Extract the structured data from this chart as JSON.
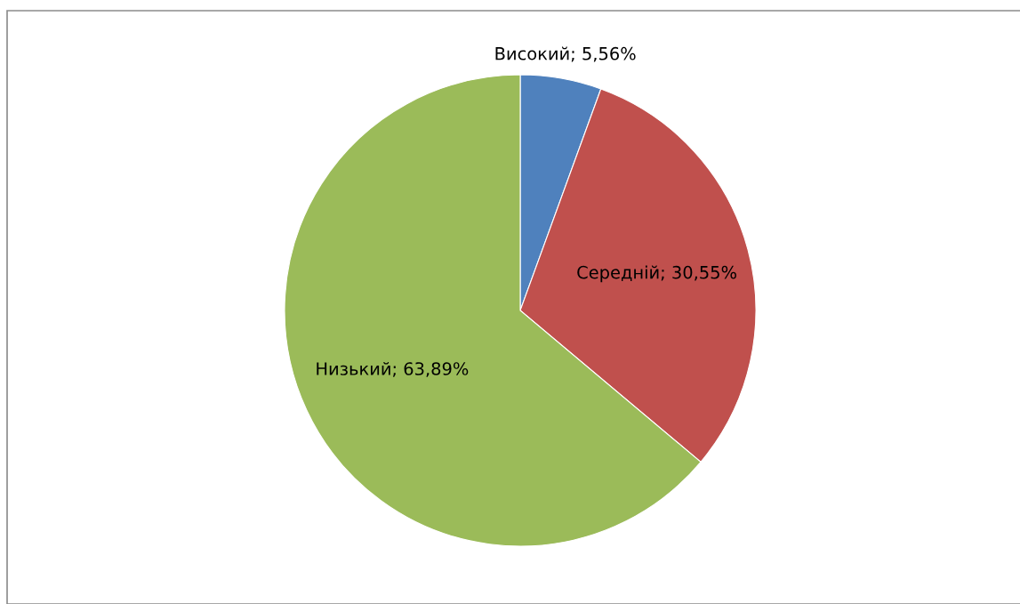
{
  "chart_data": {
    "type": "pie",
    "categories": [
      "Високий",
      "Середній",
      "Низький"
    ],
    "values": [
      5.56,
      30.55,
      63.89
    ],
    "colors": [
      "#4f81bd",
      "#c0504d",
      "#9bbb59"
    ],
    "value_labels": [
      "5,56%",
      "30,55%",
      "63,89%"
    ],
    "legend": false
  }
}
